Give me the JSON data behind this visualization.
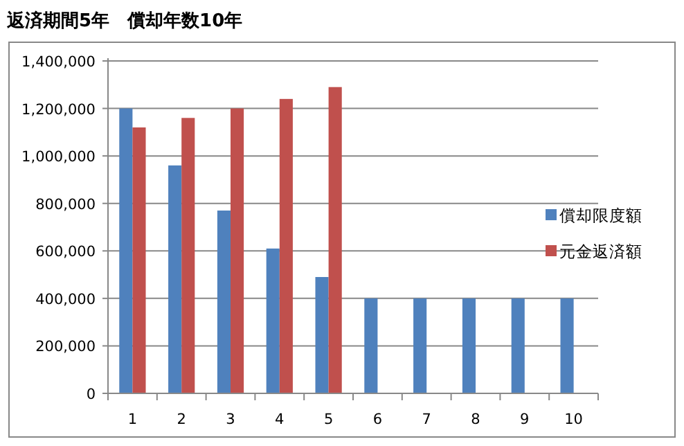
{
  "chart_data": {
    "type": "bar",
    "title": "返済期間5年　償却年数10年",
    "categories": [
      "1",
      "2",
      "3",
      "4",
      "5",
      "6",
      "7",
      "8",
      "9",
      "10"
    ],
    "series": [
      {
        "name": "償却限度額",
        "color": "#4f81bd",
        "values": [
          1200000,
          960000,
          770000,
          610000,
          490000,
          400000,
          400000,
          400000,
          400000,
          400000
        ]
      },
      {
        "name": "元金返済額",
        "color": "#c0504d",
        "values": [
          1120000,
          1160000,
          1200000,
          1240000,
          1290000,
          null,
          null,
          null,
          null,
          null
        ]
      }
    ],
    "ylim": [
      0,
      1400000
    ],
    "yticks": [
      0,
      {
        "value": 200000,
        "label": "200,000"
      },
      {
        "value": 400000,
        "label": "400,000"
      },
      {
        "value": 600000,
        "label": "600,000"
      },
      {
        "value": 800000,
        "label": "800,000"
      },
      {
        "value": 1000000,
        "label": "1,000,000"
      },
      {
        "value": 1200000,
        "label": "1,200,000"
      },
      {
        "value": 1400000,
        "label": "1,400,000"
      }
    ],
    "grid": "y",
    "legend": "right"
  }
}
